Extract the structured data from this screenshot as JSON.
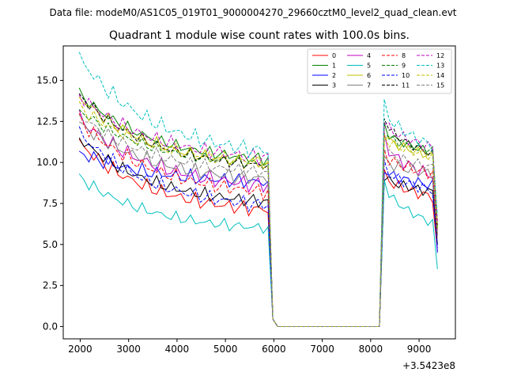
{
  "chart_data": {
    "type": "line",
    "suptitle": "Data file: modeM0/AS1C05_019T01_9000004270_29660cztM0_level2_quad_clean.evt",
    "title": "Quadrant 1 module wise count rates with 100.0s bins.",
    "xlabel": "",
    "ylabel": "",
    "x_offset_label": "+3.5423e8",
    "xlim": [
      1650,
      9750
    ],
    "ylim": [
      -0.75,
      17.1
    ],
    "x_ticks": [
      2000,
      3000,
      4000,
      5000,
      6000,
      7000,
      8000,
      9000
    ],
    "y_ticks": [
      0.0,
      2.5,
      5.0,
      7.5,
      10.0,
      12.5,
      15.0
    ],
    "x_tick_labels": [
      "2000",
      "3000",
      "4000",
      "5000",
      "6000",
      "7000",
      "8000",
      "9000"
    ],
    "y_tick_labels": [
      "0.0",
      "2.5",
      "5.0",
      "7.5",
      "10.0",
      "12.5",
      "15.0"
    ],
    "legend": {
      "position": "top-right",
      "ncol": 4
    },
    "x": [
      1980,
      2080,
      2180,
      2280,
      2380,
      2480,
      2580,
      2680,
      2780,
      2880,
      2980,
      3080,
      3180,
      3280,
      3380,
      3480,
      3580,
      3680,
      3780,
      3880,
      3980,
      4080,
      4180,
      4280,
      4380,
      4480,
      4580,
      4680,
      4780,
      4880,
      4980,
      5080,
      5180,
      5280,
      5380,
      5480,
      5580,
      5680,
      5780,
      5880,
      5980,
      6080,
      6180,
      6280,
      6380,
      6480,
      6580,
      6680,
      6780,
      6880,
      6980,
      7080,
      7180,
      7280,
      7380,
      7480,
      7580,
      7680,
      7780,
      7880,
      7980,
      8080,
      8180,
      8280,
      8380,
      8480,
      8580,
      8680,
      8780,
      8880,
      8980,
      9080,
      9180,
      9280,
      9380
    ],
    "series": [
      {
        "name": "0",
        "color": "#ff0000",
        "dashed": false,
        "start": 11.2,
        "decay_end": 7.1,
        "amp": 0.45,
        "phase": 0.3,
        "peak": 9.3,
        "end": 7.9,
        "last": 4.6
      },
      {
        "name": "1",
        "color": "#008000",
        "dashed": false,
        "start": 14.2,
        "decay_end": 10.2,
        "amp": 0.35,
        "phase": 1.1,
        "peak": 12.2,
        "end": 10.6,
        "last": 6.0
      },
      {
        "name": "2",
        "color": "#0000ff",
        "dashed": false,
        "start": 10.6,
        "decay_end": 8.8,
        "amp": 0.45,
        "phase": 2.0,
        "peak": 9.6,
        "end": 8.6,
        "last": 4.5
      },
      {
        "name": "3",
        "color": "#000000",
        "dashed": false,
        "start": 11.5,
        "decay_end": 7.6,
        "amp": 0.4,
        "phase": 2.7,
        "peak": 9.2,
        "end": 8.2,
        "last": 5.0
      },
      {
        "name": "4",
        "color": "#bf00bf",
        "dashed": false,
        "start": 12.7,
        "decay_end": 8.6,
        "amp": 0.5,
        "phase": 0.8,
        "peak": 11.4,
        "end": 9.2,
        "last": 5.8
      },
      {
        "name": "5",
        "color": "#00bfbf",
        "dashed": false,
        "start": 9.1,
        "decay_end": 6.0,
        "amp": 0.35,
        "phase": 1.6,
        "peak": 8.9,
        "end": 6.3,
        "last": 3.5
      },
      {
        "name": "6",
        "color": "#bfbf00",
        "dashed": false,
        "start": 14.0,
        "decay_end": 9.9,
        "amp": 0.4,
        "phase": 2.4,
        "peak": 11.8,
        "end": 10.4,
        "last": 6.2
      },
      {
        "name": "7",
        "color": "#808080",
        "dashed": false,
        "start": 12.4,
        "decay_end": 9.0,
        "amp": 0.45,
        "phase": 0.1,
        "peak": 10.2,
        "end": 9.3,
        "last": 5.6
      },
      {
        "name": "8",
        "color": "#ff0000",
        "dashed": true,
        "start": 12.6,
        "decay_end": 8.2,
        "amp": 0.45,
        "phase": 1.3,
        "peak": 10.6,
        "end": 9.3,
        "last": 5.4
      },
      {
        "name": "9",
        "color": "#008000",
        "dashed": true,
        "start": 13.2,
        "decay_end": 9.9,
        "amp": 0.35,
        "phase": 2.2,
        "peak": 11.9,
        "end": 10.7,
        "last": 6.0
      },
      {
        "name": "10",
        "color": "#0000ff",
        "dashed": true,
        "start": 11.8,
        "decay_end": 7.4,
        "amp": 0.45,
        "phase": 0.6,
        "peak": 9.8,
        "end": 8.3,
        "last": 4.8
      },
      {
        "name": "11",
        "color": "#000000",
        "dashed": true,
        "start": 14.1,
        "decay_end": 9.8,
        "amp": 0.35,
        "phase": 1.9,
        "peak": 12.8,
        "end": 10.5,
        "last": 6.1
      },
      {
        "name": "12",
        "color": "#bf00bf",
        "dashed": true,
        "start": 14.1,
        "decay_end": 10.3,
        "amp": 0.45,
        "phase": 2.9,
        "peak": 12.6,
        "end": 10.9,
        "last": 6.4
      },
      {
        "name": "13",
        "color": "#00bfbf",
        "dashed": true,
        "start": 16.4,
        "decay_end": 10.7,
        "amp": 0.5,
        "phase": 0.4,
        "peak": 13.5,
        "end": 11.0,
        "last": 6.8
      },
      {
        "name": "14",
        "color": "#bfbf00",
        "dashed": true,
        "start": 13.4,
        "decay_end": 10.0,
        "amp": 0.4,
        "phase": 1.4,
        "peak": 11.6,
        "end": 10.4,
        "last": 6.0
      },
      {
        "name": "15",
        "color": "#808080",
        "dashed": true,
        "start": 12.9,
        "decay_end": 9.4,
        "amp": 0.4,
        "phase": 2.5,
        "peak": 11.0,
        "end": 9.7,
        "last": 5.5
      }
    ]
  }
}
